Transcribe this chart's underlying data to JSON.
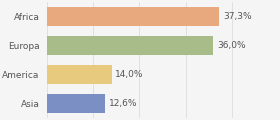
{
  "categories": [
    "Africa",
    "Europa",
    "America",
    "Asia"
  ],
  "values": [
    37.3,
    36.0,
    14.0,
    12.6
  ],
  "labels": [
    "37,3%",
    "36,0%",
    "14,0%",
    "12,6%"
  ],
  "bar_colors": [
    "#e8a97e",
    "#a8bc8a",
    "#e8ca7e",
    "#7b8fc4"
  ],
  "xlim": [
    0,
    50
  ],
  "figsize": [
    2.8,
    1.2
  ],
  "dpi": 100,
  "background_color": "#f5f5f5",
  "bar_height": 0.65,
  "label_fontsize": 6.5,
  "value_fontsize": 6.5,
  "grid_color": "#dddddd",
  "text_color": "#555555",
  "grid_positions": [
    0,
    10,
    20,
    30,
    40
  ]
}
